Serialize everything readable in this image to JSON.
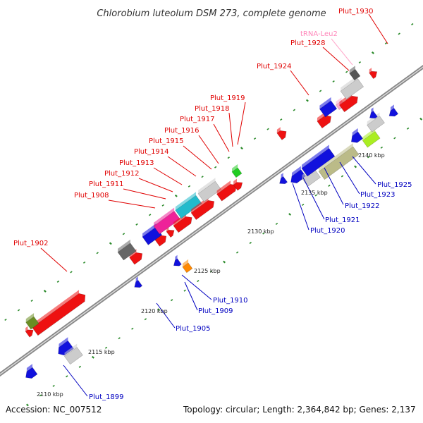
{
  "title": "Chlorobium luteolum DSM 273, complete genome",
  "footer": {
    "accession": "Accession: NC_007512",
    "summary": "Topology: circular; Length: 2,364,842 bp; Genes: 2,137"
  },
  "colors": {
    "plus_strand_label": "#e00000",
    "minus_strand_label": "#0000c0",
    "trna_label": "#ff88bb",
    "backbone": "#888888",
    "tick_major": "#2a8a2a"
  },
  "scale": {
    "tick_labels": [
      "2110 kbp",
      "2115 kbp",
      "2120 kbp",
      "2125 kbp",
      "2130 kbp",
      "2135 kbp",
      "2140 kbp"
    ]
  },
  "labels_plus": [
    "Plut_1930",
    "tRNA-Leu2",
    "Plut_1928",
    "Plut_1924",
    "Plut_1919",
    "Plut_1918",
    "Plut_1917",
    "Plut_1916",
    "Plut_1915",
    "Plut_1914",
    "Plut_1913",
    "Plut_1912",
    "Plut_1911",
    "Plut_1908",
    "Plut_1902"
  ],
  "labels_minus": [
    "Plut_1925",
    "Plut_1923",
    "Plut_1922",
    "Plut_1921",
    "Plut_1920",
    "Plut_1910",
    "Plut_1909",
    "Plut_1905",
    "Plut_1899"
  ]
}
